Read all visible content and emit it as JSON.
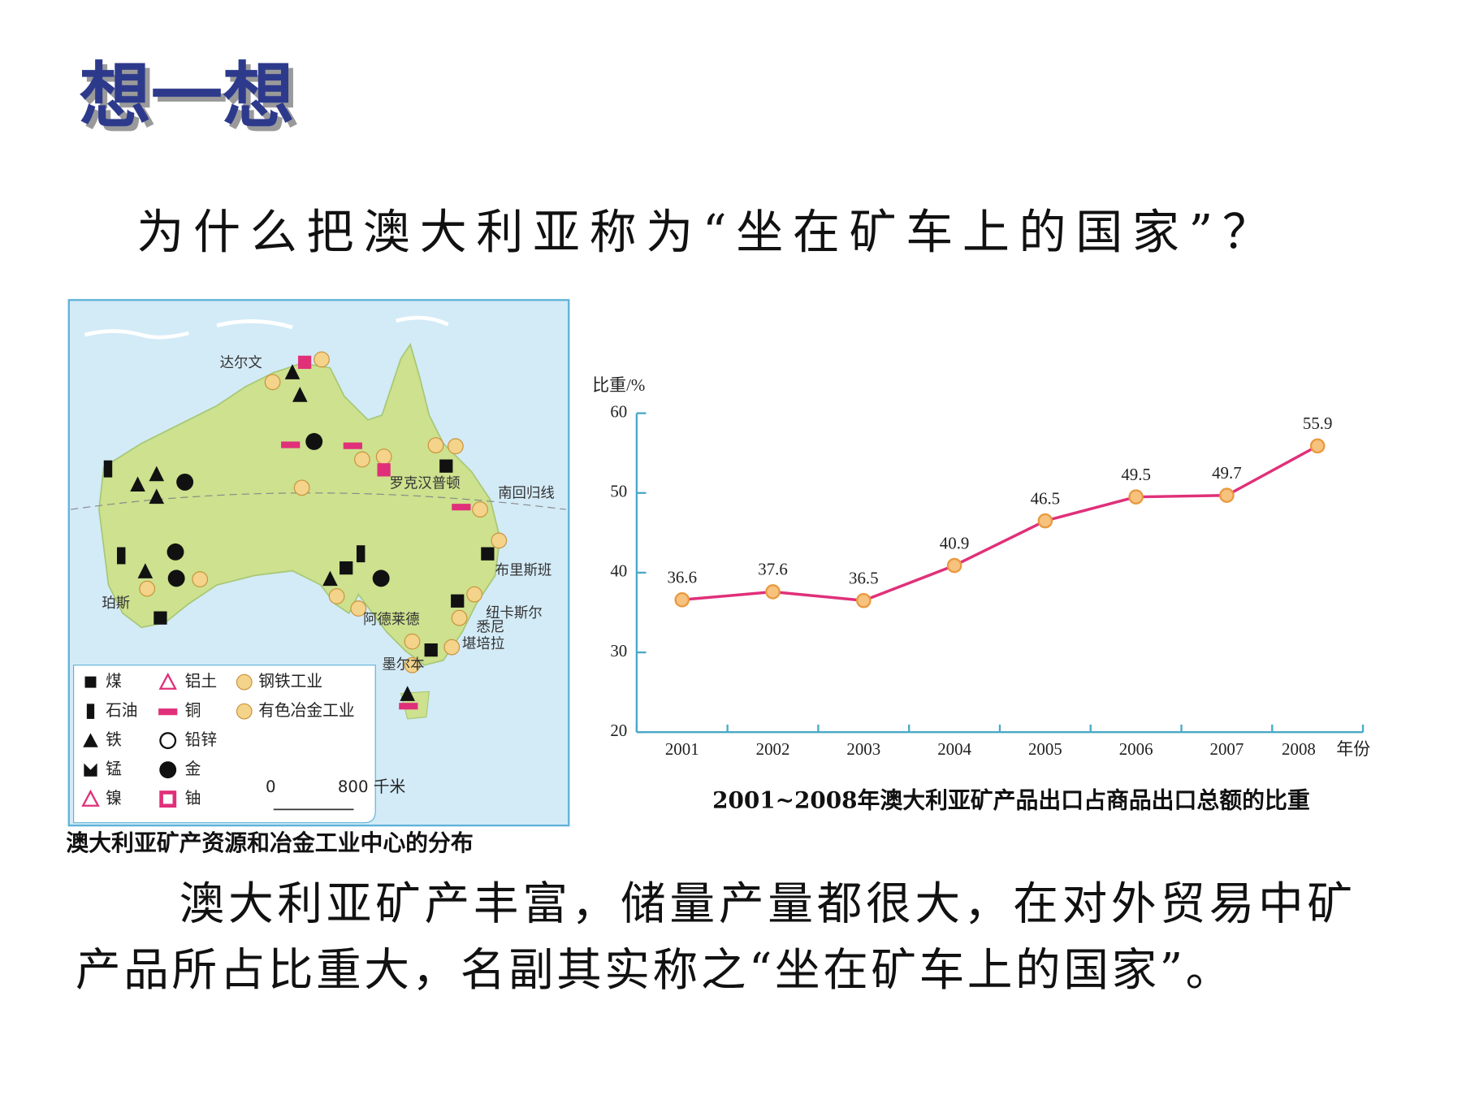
{
  "header": {
    "title": "想一想"
  },
  "question": "为什么把澳大利亚称为“坐在矿车上的国家”？",
  "map": {
    "caption": "澳大利亚矿产资源和冶金工业中心的分布",
    "places": [
      "达尔文",
      "罗克汉普顿",
      "南回归线",
      "布里斯班",
      "纽卡斯尔",
      "悉尼",
      "堪培拉",
      "阿德莱德",
      "墨尔本",
      "珀斯"
    ],
    "legend": [
      "煤",
      "石油",
      "铁",
      "锰",
      "镍",
      "铝土",
      "铜",
      "铅锌",
      "金",
      "铀",
      "钢铁工业",
      "有色冶金工业"
    ],
    "scale": [
      "0",
      "800 千米"
    ]
  },
  "chart_data": {
    "type": "line",
    "title": "2001~2008年澳大利亚矿产品出口占商品出口总额的比重",
    "y_label": "比重/%",
    "x_label": "年份",
    "categories": [
      "2001",
      "2002",
      "2003",
      "2004",
      "2005",
      "2006",
      "2007",
      "2008"
    ],
    "values": [
      36.6,
      37.6,
      36.5,
      40.9,
      46.5,
      49.5,
      49.7,
      55.9
    ],
    "color": "#e0307a",
    "marker_color": "#f7c27e",
    "ylim": [
      20,
      60
    ],
    "yticks": [
      20,
      30,
      40,
      50,
      60
    ]
  },
  "body": {
    "lines": [
      "澳大利亚矿产丰富，储量产量都很大，在对外贸易中矿",
      "产品所占比重大，名副其实称之“坐在矿车上的国家”。"
    ]
  }
}
